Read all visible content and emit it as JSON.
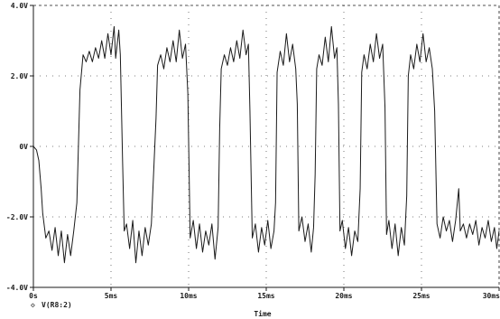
{
  "chart_data": {
    "type": "line",
    "title": "",
    "xlabel": "Time",
    "ylabel": "",
    "xlim": [
      0,
      30
    ],
    "ylim": [
      -4,
      4
    ],
    "x_unit": "ms",
    "x_ticks": [
      0,
      5,
      10,
      15,
      20,
      25,
      30
    ],
    "x_tick_labels": [
      "0s",
      "5ms",
      "10ms",
      "15ms",
      "20ms",
      "25ms",
      "30ms"
    ],
    "y_ticks": [
      4,
      2,
      0,
      -2,
      -4
    ],
    "y_tick_labels": [
      "4.0V",
      "2.0V",
      "0V",
      "-2.0V",
      "-4.0V"
    ],
    "grid": "dotted",
    "legend": {
      "marker": "◇",
      "label": "V(R8:2)",
      "placement": "bottom-left"
    },
    "colors": {
      "trace": "#1a1a1a",
      "axis": "#1a1a1a",
      "grid": "#555555",
      "background": "#ffffff"
    },
    "series": [
      {
        "name": "V(R8:2)",
        "points": [
          [
            0.0,
            0.0
          ],
          [
            0.2,
            -0.1
          ],
          [
            0.35,
            -0.4
          ],
          [
            0.5,
            -1.2
          ],
          [
            0.6,
            -1.9
          ],
          [
            0.8,
            -2.6
          ],
          [
            1.0,
            -2.4
          ],
          [
            1.2,
            -2.95
          ],
          [
            1.4,
            -2.3
          ],
          [
            1.6,
            -3.1
          ],
          [
            1.8,
            -2.4
          ],
          [
            2.0,
            -3.3
          ],
          [
            2.2,
            -2.5
          ],
          [
            2.4,
            -3.1
          ],
          [
            2.6,
            -2.4
          ],
          [
            2.8,
            -1.6
          ],
          [
            3.0,
            1.6
          ],
          [
            3.2,
            2.6
          ],
          [
            3.4,
            2.4
          ],
          [
            3.6,
            2.7
          ],
          [
            3.8,
            2.4
          ],
          [
            4.0,
            2.8
          ],
          [
            4.2,
            2.5
          ],
          [
            4.4,
            3.0
          ],
          [
            4.6,
            2.5
          ],
          [
            4.8,
            3.2
          ],
          [
            5.0,
            2.6
          ],
          [
            5.2,
            3.4
          ],
          [
            5.3,
            2.5
          ],
          [
            5.5,
            3.3
          ],
          [
            5.6,
            2.6
          ],
          [
            5.75,
            -0.5
          ],
          [
            5.85,
            -2.4
          ],
          [
            6.0,
            -2.2
          ],
          [
            6.2,
            -2.9
          ],
          [
            6.4,
            -2.1
          ],
          [
            6.6,
            -3.3
          ],
          [
            6.8,
            -2.4
          ],
          [
            7.0,
            -3.1
          ],
          [
            7.2,
            -2.3
          ],
          [
            7.4,
            -2.8
          ],
          [
            7.6,
            -2.2
          ],
          [
            7.9,
            0.8
          ],
          [
            8.0,
            2.3
          ],
          [
            8.2,
            2.6
          ],
          [
            8.4,
            2.2
          ],
          [
            8.6,
            2.8
          ],
          [
            8.8,
            2.4
          ],
          [
            9.0,
            3.0
          ],
          [
            9.2,
            2.4
          ],
          [
            9.4,
            3.3
          ],
          [
            9.6,
            2.5
          ],
          [
            9.8,
            2.9
          ],
          [
            9.95,
            1.5
          ],
          [
            10.1,
            -2.6
          ],
          [
            10.3,
            -2.1
          ],
          [
            10.5,
            -2.9
          ],
          [
            10.7,
            -2.2
          ],
          [
            10.9,
            -3.0
          ],
          [
            11.1,
            -2.4
          ],
          [
            11.3,
            -2.8
          ],
          [
            11.5,
            -2.2
          ],
          [
            11.7,
            -3.2
          ],
          [
            11.9,
            -2.3
          ],
          [
            12.0,
            0.5
          ],
          [
            12.1,
            2.2
          ],
          [
            12.3,
            2.6
          ],
          [
            12.5,
            2.3
          ],
          [
            12.7,
            2.8
          ],
          [
            12.9,
            2.4
          ],
          [
            13.1,
            3.0
          ],
          [
            13.3,
            2.5
          ],
          [
            13.5,
            3.3
          ],
          [
            13.7,
            2.6
          ],
          [
            13.85,
            2.9
          ],
          [
            13.95,
            1.0
          ],
          [
            14.1,
            -2.6
          ],
          [
            14.3,
            -2.2
          ],
          [
            14.5,
            -3.0
          ],
          [
            14.7,
            -2.3
          ],
          [
            14.9,
            -2.8
          ],
          [
            15.1,
            -2.1
          ],
          [
            15.3,
            -2.9
          ],
          [
            15.5,
            -2.4
          ],
          [
            15.6,
            -1.6
          ],
          [
            15.7,
            2.1
          ],
          [
            15.9,
            2.7
          ],
          [
            16.1,
            2.3
          ],
          [
            16.3,
            3.2
          ],
          [
            16.5,
            2.4
          ],
          [
            16.7,
            2.9
          ],
          [
            16.9,
            2.2
          ],
          [
            17.0,
            1.2
          ],
          [
            17.1,
            -2.4
          ],
          [
            17.3,
            -2.0
          ],
          [
            17.5,
            -2.7
          ],
          [
            17.7,
            -2.2
          ],
          [
            17.9,
            -3.0
          ],
          [
            18.05,
            -2.3
          ],
          [
            18.15,
            -0.8
          ],
          [
            18.25,
            2.2
          ],
          [
            18.4,
            2.6
          ],
          [
            18.6,
            2.3
          ],
          [
            18.8,
            3.1
          ],
          [
            19.0,
            2.4
          ],
          [
            19.2,
            3.4
          ],
          [
            19.4,
            2.5
          ],
          [
            19.55,
            2.8
          ],
          [
            19.65,
            1.2
          ],
          [
            19.75,
            -2.4
          ],
          [
            19.9,
            -2.1
          ],
          [
            20.1,
            -2.9
          ],
          [
            20.3,
            -2.3
          ],
          [
            20.5,
            -3.1
          ],
          [
            20.7,
            -2.4
          ],
          [
            20.9,
            -2.7
          ],
          [
            21.05,
            -1.2
          ],
          [
            21.15,
            2.1
          ],
          [
            21.3,
            2.6
          ],
          [
            21.5,
            2.2
          ],
          [
            21.7,
            2.9
          ],
          [
            21.9,
            2.4
          ],
          [
            22.1,
            3.2
          ],
          [
            22.3,
            2.5
          ],
          [
            22.5,
            2.9
          ],
          [
            22.65,
            1.1
          ],
          [
            22.75,
            -2.5
          ],
          [
            22.9,
            -2.1
          ],
          [
            23.1,
            -2.9
          ],
          [
            23.3,
            -2.2
          ],
          [
            23.5,
            -3.1
          ],
          [
            23.7,
            -2.3
          ],
          [
            23.9,
            -2.8
          ],
          [
            24.05,
            -1.4
          ],
          [
            24.15,
            2.0
          ],
          [
            24.3,
            2.6
          ],
          [
            24.5,
            2.2
          ],
          [
            24.7,
            2.9
          ],
          [
            24.9,
            2.4
          ],
          [
            25.1,
            3.2
          ],
          [
            25.3,
            2.4
          ],
          [
            25.5,
            2.8
          ],
          [
            25.7,
            2.2
          ],
          [
            25.85,
            1.0
          ],
          [
            26.0,
            -2.2
          ],
          [
            26.2,
            -2.6
          ],
          [
            26.4,
            -2.0
          ],
          [
            26.6,
            -2.4
          ],
          [
            26.8,
            -2.1
          ],
          [
            27.0,
            -2.7
          ],
          [
            27.2,
            -2.1
          ],
          [
            27.4,
            -1.2
          ],
          [
            27.5,
            -2.4
          ],
          [
            27.7,
            -2.2
          ],
          [
            27.9,
            -2.6
          ],
          [
            28.1,
            -2.2
          ],
          [
            28.3,
            -2.5
          ],
          [
            28.5,
            -2.1
          ],
          [
            28.7,
            -2.8
          ],
          [
            28.9,
            -2.3
          ],
          [
            29.1,
            -2.6
          ],
          [
            29.3,
            -2.1
          ],
          [
            29.5,
            -2.7
          ],
          [
            29.7,
            -2.3
          ],
          [
            29.85,
            -2.9
          ],
          [
            30.0,
            -2.4
          ]
        ]
      }
    ]
  }
}
